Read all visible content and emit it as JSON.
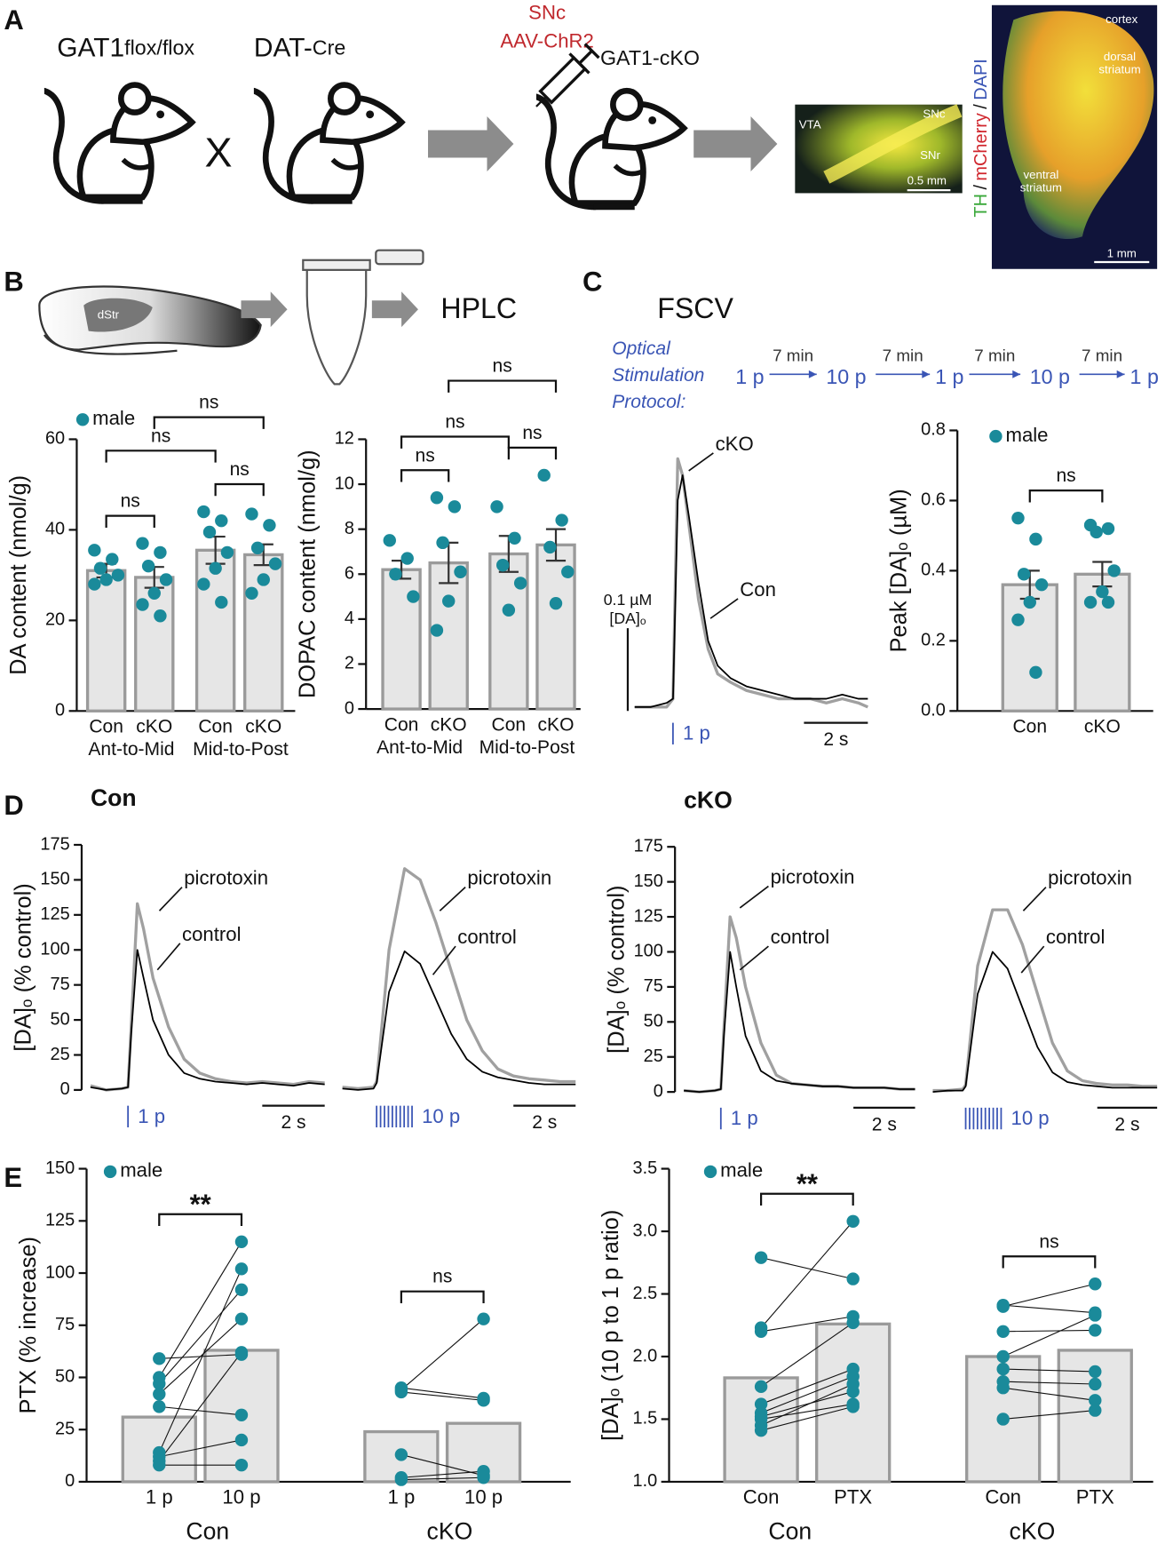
{
  "panels": [
    "A",
    "B",
    "C",
    "D",
    "E"
  ],
  "schematic_a": {
    "mouse1": "GAT1",
    "mouse1_allele": "flox/flox",
    "cross": "X",
    "mouse2": "DAT-",
    "mouse2_allele": "Cre",
    "injection": [
      "SNc",
      "AAV-ChR2"
    ],
    "mouse3": "GAT1-cKO",
    "midbrain": {
      "labels": [
        "VTA",
        "SNc",
        "SNr"
      ],
      "scale": "0.5 mm"
    },
    "striatum": {
      "cortex": "cortex",
      "dorsal": [
        "dorsal",
        "striatum"
      ],
      "ventral": [
        "ventral",
        "striatum"
      ],
      "scale": "1 mm",
      "stains": [
        {
          "name": "TH",
          "color": "#3aa83a"
        },
        {
          "name": "mCherry",
          "color": "#d0262d"
        },
        {
          "name": "DAPI",
          "color": "#3a55b5"
        }
      ],
      "separator": "/"
    }
  },
  "schematic_b": {
    "region": "dStr",
    "method": "HPLC"
  },
  "schematic_c": {
    "method": "FSCV",
    "protocol": {
      "label": [
        "Optical",
        "Stimulation",
        "Protocol:"
      ],
      "steps": [
        "1 p",
        "10 p",
        "1 p",
        "10 p",
        "1 p"
      ],
      "intervals": [
        "7 min",
        "7 min",
        "7 min",
        "7 min"
      ],
      "color": "#3a55b5"
    }
  },
  "chart_data": [
    {
      "type": "bar",
      "ylabel": "DA content (nmol/g)",
      "categories": [
        "Con",
        "cKO",
        "Con",
        "cKO"
      ],
      "groups": [
        "Ant-to-Mid",
        "Mid-to-Post"
      ],
      "values": [
        31,
        29.5,
        35.5,
        34.5
      ],
      "errors": [
        1.5,
        2.3,
        3,
        2.3
      ],
      "points": [
        [
          35.5,
          33.5,
          31.5,
          30,
          29,
          28
        ],
        [
          37,
          35,
          32,
          29,
          26,
          23.5,
          21
        ],
        [
          44,
          42,
          39.5,
          35,
          31.5,
          28,
          24
        ],
        [
          43.5,
          41,
          36,
          32.5,
          29,
          26
        ]
      ],
      "color": "#e6e6e6",
      "edge": "#9a9a9a",
      "point_color": "#1a8a9a",
      "legend": "male",
      "ylim": [
        0,
        60
      ],
      "yticks": [
        0,
        20,
        40,
        60
      ],
      "brackets": [
        {
          "from": 0,
          "to": 1,
          "label": "ns"
        },
        {
          "from": 2,
          "to": 3,
          "label": "ns"
        },
        {
          "from": 0,
          "to": 2,
          "label": "ns"
        },
        {
          "from": 1,
          "to": 3,
          "label": "ns"
        }
      ]
    },
    {
      "type": "bar",
      "ylabel": "DOPAC content (nmol/g)",
      "categories": [
        "Con",
        "cKO",
        "Con",
        "cKO"
      ],
      "groups": [
        "Ant-to-Mid",
        "Mid-to-Post"
      ],
      "values": [
        6.2,
        6.5,
        6.9,
        7.3
      ],
      "errors": [
        0.4,
        0.9,
        0.8,
        0.7
      ],
      "points": [
        [
          7.5,
          6.7,
          6.0,
          5.0
        ],
        [
          9.4,
          9.0,
          7.4,
          6.1,
          4.8,
          3.5
        ],
        [
          9.0,
          7.6,
          6.4,
          5.6,
          4.4
        ],
        [
          10.4,
          8.4,
          7.2,
          6.1,
          4.7
        ]
      ],
      "color": "#e6e6e6",
      "edge": "#9a9a9a",
      "point_color": "#1a8a9a",
      "ylim": [
        0,
        12
      ],
      "yticks": [
        0,
        2,
        4,
        6,
        8,
        10,
        12
      ],
      "brackets": [
        {
          "from": 0,
          "to": 1,
          "label": "ns"
        },
        {
          "from": 2,
          "to": 3,
          "label": "ns"
        },
        {
          "from": 0,
          "to": 2,
          "label": "ns"
        },
        {
          "from": 1,
          "to": 3,
          "label": "ns"
        }
      ]
    },
    {
      "type": "line",
      "x": [
        0,
        0.5,
        1,
        1.2,
        1.35,
        1.5,
        1.7,
        2,
        2.3,
        2.6,
        3,
        3.5,
        4,
        4.5,
        5,
        5.5,
        6,
        6.5,
        7,
        7.3
      ],
      "series": [
        {
          "name": "cKO",
          "color": "#a0a0a0",
          "values": [
            0,
            0,
            0,
            0.01,
            0.3,
            0.28,
            0.22,
            0.13,
            0.07,
            0.04,
            0.03,
            0.02,
            0.015,
            0.01,
            0.01,
            0.01,
            0.005,
            0.01,
            0.005,
            0
          ]
        },
        {
          "name": "Con",
          "color": "#000000",
          "values": [
            0,
            0,
            0.005,
            0.01,
            0.25,
            0.28,
            0.23,
            0.15,
            0.08,
            0.05,
            0.035,
            0.025,
            0.02,
            0.015,
            0.01,
            0.01,
            0.01,
            0.015,
            0.01,
            0.01
          ]
        }
      ],
      "xlim": [
        0,
        7.3
      ],
      "ylim": [
        0,
        0.32
      ],
      "stimulus": {
        "time": 1.2,
        "pulses": 1,
        "label": "1 p",
        "color": "#3a55b5"
      },
      "xscalebar": {
        "value": 2,
        "label": "2 s"
      },
      "yscalebar": {
        "value": 0.1,
        "label": "0.1 µM",
        "unit": "[DA]ₒ"
      }
    },
    {
      "type": "bar",
      "ylabel": "Peak [DA]ₒ (µM)",
      "categories": [
        "Con",
        "cKO"
      ],
      "values": [
        0.36,
        0.39
      ],
      "errors": [
        0.04,
        0.035
      ],
      "points": [
        [
          0.55,
          0.49,
          0.39,
          0.36,
          0.31,
          0.26,
          0.11
        ],
        [
          0.53,
          0.52,
          0.51,
          0.4,
          0.34,
          0.31,
          0.31
        ]
      ],
      "color": "#e6e6e6",
      "edge": "#9a9a9a",
      "point_color": "#1a8a9a",
      "legend": "male",
      "ylim": [
        0,
        0.8
      ],
      "yticks": [
        {
          "value": 0,
          "label": "0.0"
        },
        0.2,
        0.4,
        0.6,
        0.8
      ],
      "brackets": [
        {
          "from": 0,
          "to": 1,
          "label": "ns"
        }
      ]
    },
    {
      "type": "line",
      "title": "Con",
      "ylabel": "[DA]ₒ (% control)",
      "x": [
        0,
        0.5,
        1,
        1.2,
        1.3,
        1.5,
        1.7,
        2,
        2.5,
        3,
        3.5,
        4,
        4.5,
        5,
        5.5,
        6,
        6.5,
        7,
        7.5
      ],
      "series": [
        {
          "name": "picrotoxin",
          "color": "#a0a0a0",
          "values": [
            3,
            0,
            1,
            2,
            45,
            133,
            115,
            80,
            45,
            22,
            12,
            8,
            6,
            5,
            6,
            5,
            4,
            6,
            5
          ]
        },
        {
          "name": "control",
          "color": "#000000",
          "values": [
            2,
            0,
            1,
            2,
            40,
            100,
            80,
            50,
            25,
            12,
            8,
            6,
            5,
            4,
            5,
            4,
            3,
            5,
            4
          ]
        }
      ],
      "xlim": [
        0,
        7.5
      ],
      "ylim": [
        0,
        175
      ],
      "yticks": [
        0,
        25,
        50,
        75,
        100,
        125,
        150,
        175
      ],
      "stimulus": {
        "time": 1.2,
        "pulses": 1,
        "label": "1 p",
        "color": "#3a55b5"
      },
      "xscalebar": {
        "value": 2,
        "label": "2 s"
      }
    },
    {
      "type": "line",
      "x": [
        0,
        0.5,
        1,
        1.1,
        1.5,
        2,
        2.5,
        3,
        3.5,
        4,
        4.5,
        5,
        5.5,
        6,
        6.5,
        7,
        7.5
      ],
      "series": [
        {
          "name": "picrotoxin",
          "color": "#a0a0a0",
          "values": [
            2,
            1,
            2,
            6,
            100,
            158,
            150,
            120,
            85,
            50,
            28,
            15,
            10,
            8,
            7,
            6,
            6
          ]
        },
        {
          "name": "control",
          "color": "#000000",
          "values": [
            1,
            0,
            1,
            5,
            70,
            99,
            90,
            65,
            40,
            22,
            13,
            9,
            7,
            5,
            4,
            4,
            4
          ]
        }
      ],
      "xlim": [
        0,
        7.5
      ],
      "ylim": [
        0,
        175
      ],
      "stimulus": {
        "time": 1.1,
        "pulses": 10,
        "label": "10 p",
        "color": "#3a55b5"
      },
      "xscalebar": {
        "value": 2,
        "label": "2 s"
      }
    },
    {
      "type": "line",
      "title": "cKO",
      "ylabel": "[DA]ₒ (% control)",
      "x": [
        0,
        0.5,
        1,
        1.2,
        1.3,
        1.5,
        1.7,
        2,
        2.5,
        3,
        3.5,
        4,
        4.5,
        5,
        5.5,
        6,
        6.5,
        7,
        7.5
      ],
      "series": [
        {
          "name": "picrotoxin",
          "color": "#a0a0a0",
          "values": [
            1,
            0,
            1,
            2,
            45,
            125,
            110,
            75,
            35,
            12,
            6,
            5,
            4,
            4,
            3,
            3,
            3,
            2,
            2
          ]
        },
        {
          "name": "control",
          "color": "#000000",
          "values": [
            1,
            0,
            1,
            2,
            40,
            100,
            75,
            40,
            15,
            8,
            6,
            5,
            4,
            4,
            3,
            3,
            3,
            2,
            2
          ]
        }
      ],
      "xlim": [
        0,
        7.5
      ],
      "ylim": [
        0,
        175
      ],
      "yticks": [
        0,
        25,
        50,
        75,
        100,
        125,
        150,
        175
      ],
      "stimulus": {
        "time": 1.2,
        "pulses": 1,
        "label": "1 p",
        "color": "#3a55b5"
      },
      "xscalebar": {
        "value": 2,
        "label": "2 s"
      }
    },
    {
      "type": "line",
      "x": [
        0,
        0.5,
        1,
        1.1,
        1.5,
        2,
        2.5,
        3,
        3.5,
        4,
        4.5,
        5,
        5.5,
        6,
        6.5,
        7,
        7.5
      ],
      "series": [
        {
          "name": "picrotoxin",
          "color": "#a0a0a0",
          "values": [
            1,
            1,
            2,
            5,
            90,
            130,
            130,
            105,
            70,
            35,
            15,
            8,
            6,
            5,
            5,
            4,
            4
          ]
        },
        {
          "name": "control",
          "color": "#000000",
          "values": [
            0,
            1,
            1,
            4,
            70,
            100,
            88,
            60,
            32,
            14,
            7,
            5,
            4,
            3,
            3,
            3,
            3
          ]
        }
      ],
      "xlim": [
        0,
        7.5
      ],
      "ylim": [
        0,
        175
      ],
      "stimulus": {
        "time": 1.1,
        "pulses": 10,
        "label": "10 p",
        "color": "#3a55b5"
      },
      "xscalebar": {
        "value": 2,
        "label": "2 s"
      }
    },
    {
      "type": "bar",
      "ylabel": "PTX (% increase)",
      "categories": [
        "1 p",
        "10 p",
        "1 p",
        "10 p"
      ],
      "groups": [
        "Con",
        "cKO"
      ],
      "values": [
        31,
        63,
        24,
        28
      ],
      "paired": true,
      "points": [
        [
          59,
          50,
          47,
          42,
          36,
          14,
          12,
          10,
          8
        ],
        [
          61,
          115,
          92,
          78,
          32,
          102,
          20,
          62,
          8
        ],
        [
          45,
          44,
          43,
          13,
          2,
          1
        ],
        [
          40,
          78,
          39,
          3,
          5,
          2
        ]
      ],
      "color": "#e6e6e6",
      "edge": "#9a9a9a",
      "point_color": "#1a8a9a",
      "legend": "male",
      "ylim": [
        0,
        150
      ],
      "yticks": [
        0,
        25,
        50,
        75,
        100,
        125,
        150
      ],
      "brackets": [
        {
          "from": 0,
          "to": 1,
          "label": "**"
        },
        {
          "from": 2,
          "to": 3,
          "label": "ns"
        }
      ]
    },
    {
      "type": "bar",
      "ylabel": "[DA]ₒ (10 p to 1 p ratio)",
      "categories": [
        "Con",
        "PTX",
        "Con",
        "PTX"
      ],
      "groups": [
        "Con",
        "cKO"
      ],
      "values": [
        1.83,
        2.26,
        2.0,
        2.05
      ],
      "paired": true,
      "points": [
        [
          2.79,
          2.23,
          2.2,
          1.76,
          1.62,
          1.55,
          1.52,
          1.5,
          1.45,
          1.41
        ],
        [
          2.62,
          3.08,
          2.32,
          2.27,
          1.9,
          1.84,
          1.72,
          1.62,
          1.78,
          1.6
        ],
        [
          2.41,
          2.4,
          2.2,
          2.0,
          1.9,
          1.8,
          1.75,
          1.5
        ],
        [
          2.35,
          2.58,
          2.21,
          2.33,
          1.88,
          1.78,
          1.65,
          1.57
        ]
      ],
      "color": "#e6e6e6",
      "edge": "#9a9a9a",
      "point_color": "#1a8a9a",
      "legend": "male",
      "ylim": [
        1,
        3.5
      ],
      "yticks": [
        {
          "value": 1,
          "label": "1.0"
        },
        1.5,
        {
          "value": 2,
          "label": "2.0"
        },
        2.5,
        {
          "value": 3,
          "label": "3.0"
        },
        3.5
      ],
      "brackets": [
        {
          "from": 0,
          "to": 1,
          "label": "**"
        },
        {
          "from": 2,
          "to": 3,
          "label": "ns"
        }
      ]
    }
  ]
}
